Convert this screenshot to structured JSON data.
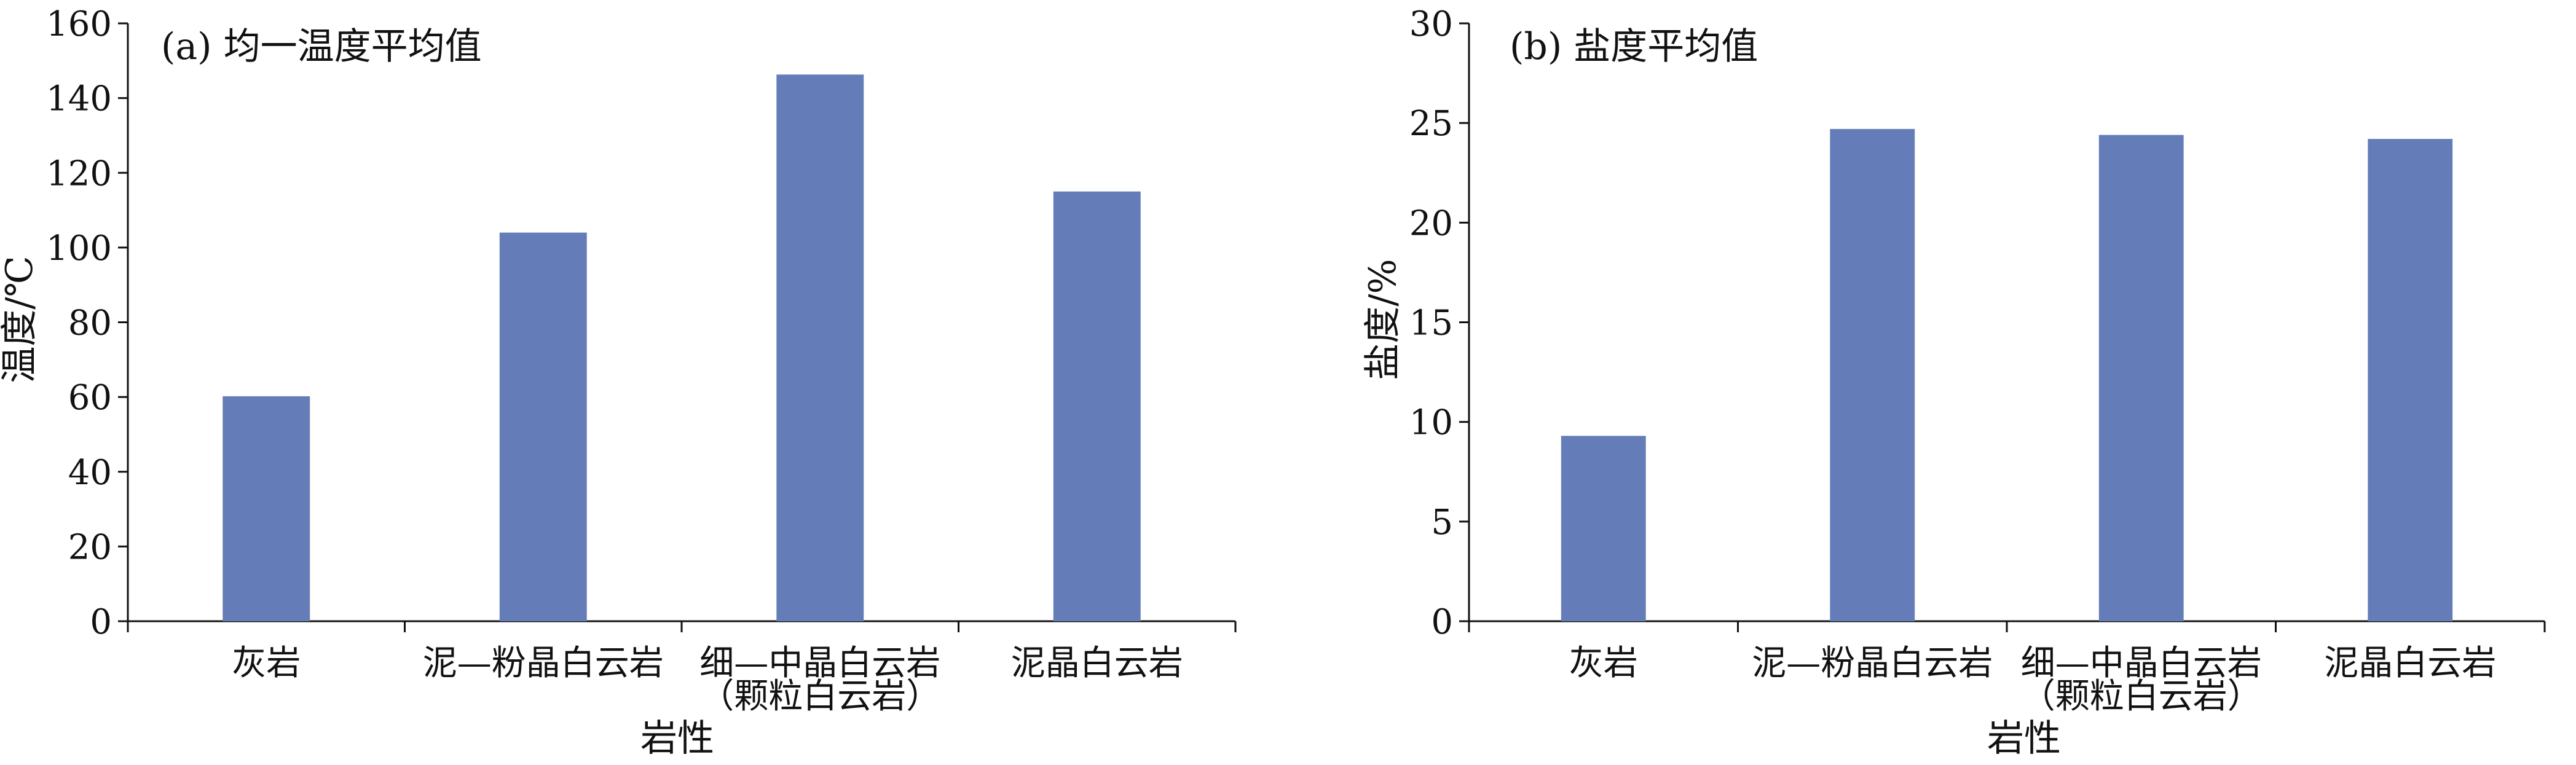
{
  "colors": {
    "bar": "#647cb7",
    "axis": "#111111"
  },
  "chart_data": [
    {
      "type": "bar",
      "title": "(a) 均一温度平均值",
      "xlabel": "岩性",
      "ylabel": "温度/℃",
      "categories": [
        [
          "灰岩"
        ],
        [
          "泥—粉晶白云岩"
        ],
        [
          "细—中晶白云岩",
          "（颗粒白云岩）"
        ],
        [
          "泥晶白云岩"
        ]
      ],
      "values": [
        60.2,
        104.0,
        146.3,
        115.0
      ],
      "ylim": [
        0,
        160
      ],
      "yticks": [
        0,
        20,
        40,
        60,
        80,
        100,
        120,
        140,
        160
      ],
      "grid": false,
      "legend": "none"
    },
    {
      "type": "bar",
      "title": "(b) 盐度平均值",
      "xlabel": "岩性",
      "ylabel": "盐度/%",
      "categories": [
        [
          "灰岩"
        ],
        [
          "泥—粉晶白云岩"
        ],
        [
          "细—中晶白云岩",
          "（颗粒白云岩）"
        ],
        [
          "泥晶白云岩"
        ]
      ],
      "values": [
        9.3,
        24.7,
        24.4,
        24.2
      ],
      "ylim": [
        0,
        30
      ],
      "yticks": [
        0,
        5,
        10,
        15,
        20,
        25,
        30
      ],
      "grid": false,
      "legend": "none"
    }
  ]
}
